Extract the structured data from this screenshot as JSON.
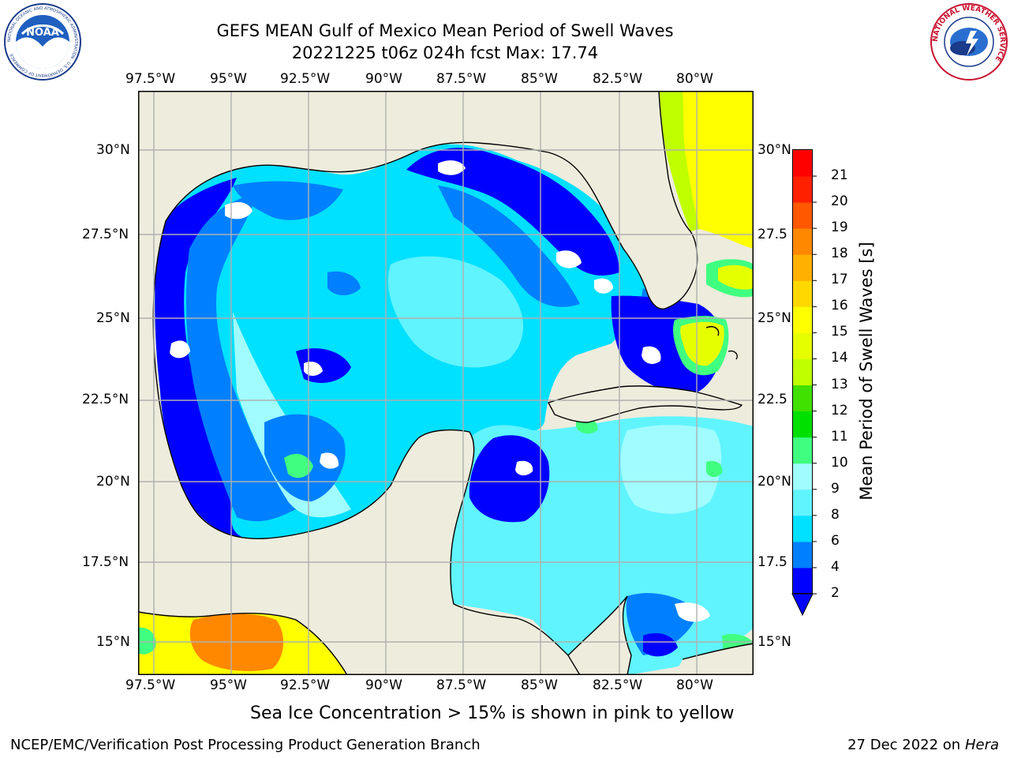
{
  "header": {
    "title_line1": "GEFS MEAN Gulf of Mexico Mean Period of Swell Waves",
    "title_line2": "20221225 t06z 024h fcst   Max: 17.74"
  },
  "logos": {
    "left_name": "NOAA",
    "left_ring_text": "NATIONAL OCEANIC AND ATMOSPHERIC ADMINISTRATION · U.S. DEPARTMENT OF COMMERCE",
    "right_ring_text": "NATIONAL WEATHER SERVICE"
  },
  "map": {
    "lon_ticks": [
      "97.5°W",
      "95°W",
      "92.5°W",
      "90°W",
      "87.5°W",
      "85°W",
      "82.5°W",
      "80°W"
    ],
    "lat_ticks_left": [
      "30°N",
      "27.5°N",
      "25°N",
      "22.5°N",
      "20°N",
      "17.5°N",
      "15°N"
    ],
    "lat_ticks_right": [
      "30°N",
      "27.5",
      "25°N",
      "22.5",
      "20°N",
      "17.5",
      "15°N"
    ],
    "colors": {
      "land": "#eeecdc",
      "grid": "#b0b0b0",
      "coast": "#000000",
      "open_water": "#ffffff"
    }
  },
  "colorbar": {
    "label": "Mean Period of Swell Waves [s]",
    "ticks": [
      "2",
      "4",
      "6",
      "8",
      "9",
      "10",
      "11",
      "12",
      "13",
      "14",
      "15",
      "16",
      "17",
      "18",
      "19",
      "20",
      "21"
    ],
    "colors": [
      "#0000ff",
      "#0080ff",
      "#00e0ff",
      "#60f4ff",
      "#a0fcff",
      "#40ff80",
      "#00e000",
      "#40e000",
      "#c0ff00",
      "#e6ff00",
      "#ffff00",
      "#ffd800",
      "#ffb000",
      "#ff8800",
      "#ff5800",
      "#ff2000",
      "#ff0000"
    ],
    "extend_color": "#0000ff"
  },
  "footer": {
    "note": "Sea Ice Concentration > 15% is shown in pink to yellow",
    "credit": "NCEP/EMC/Verification Post Processing Product Generation Branch",
    "date": "27 Dec 2022 on",
    "host": "Hera"
  }
}
